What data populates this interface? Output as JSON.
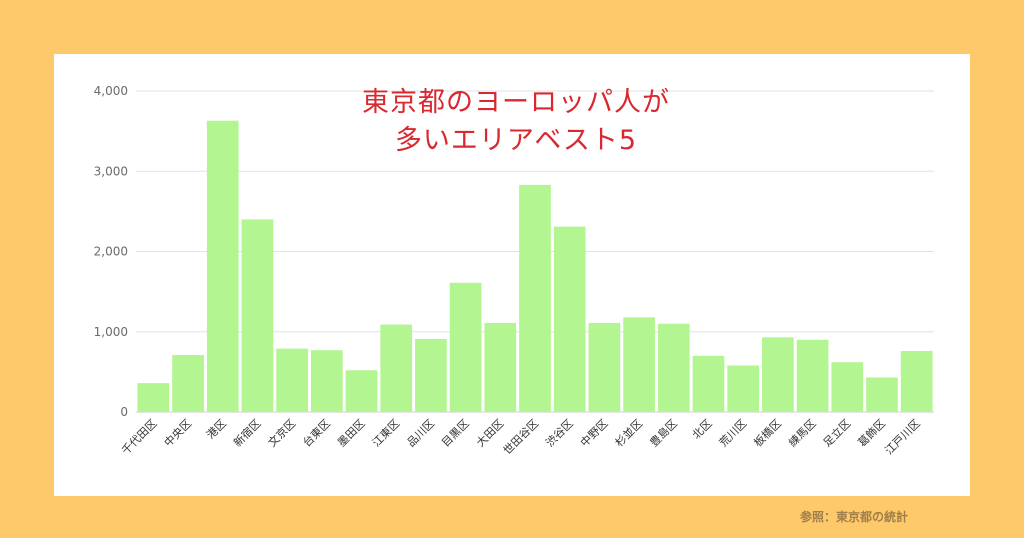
{
  "title_lines": [
    "東京都のヨーロッパ人が",
    "多いエリアベスト5"
  ],
  "source": "参照：東京都の統計",
  "colors": {
    "background": "#fdc96a",
    "panel": "#ffffff",
    "bar": "#b3f591",
    "title": "#d9282f",
    "grid": "#e2e2e2"
  },
  "chart_data": {
    "type": "bar",
    "categories": [
      "千代田区",
      "中央区",
      "港区",
      "新宿区",
      "文京区",
      "台東区",
      "墨田区",
      "江東区",
      "品川区",
      "目黒区",
      "大田区",
      "世田谷区",
      "渋谷区",
      "中野区",
      "杉並区",
      "豊島区",
      "北区",
      "荒川区",
      "板橋区",
      "練馬区",
      "足立区",
      "葛飾区",
      "江戸川区"
    ],
    "values": [
      360,
      710,
      3630,
      2400,
      790,
      770,
      520,
      1090,
      910,
      1610,
      1110,
      2830,
      2310,
      1110,
      1180,
      1100,
      700,
      580,
      930,
      900,
      620,
      430,
      760
    ],
    "title": "東京都のヨーロッパ人が多いエリアベスト5",
    "ylim": [
      0,
      4000
    ],
    "yticks": [
      "0",
      "1,000",
      "2,000",
      "3,000",
      "4,000"
    ],
    "grid": true,
    "legend": "none"
  }
}
